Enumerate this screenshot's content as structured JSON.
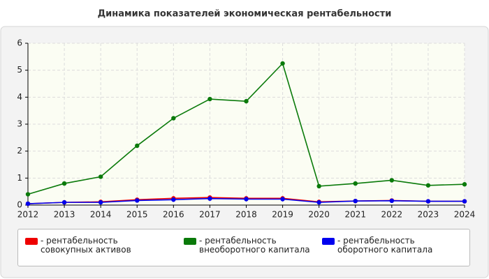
{
  "chart_data": {
    "type": "line",
    "title": "Динамика показателей экономическая рентабельности",
    "categories": [
      "2012",
      "2013",
      "2014",
      "2015",
      "2016",
      "2017",
      "2018",
      "2019",
      "2020",
      "2021",
      "2022",
      "2023",
      "2024"
    ],
    "series": [
      {
        "name": "- рентабельность совокупных активов",
        "color": "#ee0000",
        "values": [
          0.05,
          0.1,
          0.12,
          0.2,
          0.25,
          0.28,
          0.25,
          0.25,
          0.12,
          0.15,
          0.17,
          0.14,
          0.14
        ]
      },
      {
        "name": "- рентабельность внеоборотного капитала",
        "color": "#0a7a0a",
        "values": [
          0.4,
          0.8,
          1.05,
          2.2,
          3.22,
          3.93,
          3.85,
          5.25,
          0.7,
          0.8,
          0.92,
          0.73,
          0.77
        ]
      },
      {
        "name": "- рентабельность оборотного капитала",
        "color": "#0000ee",
        "values": [
          0.05,
          0.1,
          0.1,
          0.17,
          0.2,
          0.24,
          0.22,
          0.22,
          0.1,
          0.15,
          0.16,
          0.14,
          0.14
        ]
      }
    ],
    "ylim": [
      0,
      6
    ],
    "yticks": [
      0,
      1,
      2,
      3,
      4,
      5,
      6
    ],
    "grid": true
  }
}
